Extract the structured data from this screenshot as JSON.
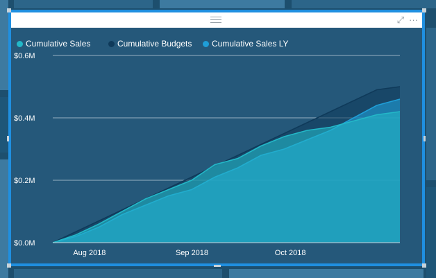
{
  "visual": {
    "legend": [
      {
        "label": "Cumulative Sales",
        "color": "#23b8c8"
      },
      {
        "label": "Cumulative Budgets",
        "color": "#0f3a5a"
      },
      {
        "label": "Cumulative Sales LY",
        "color": "#1f9ed8"
      }
    ],
    "header_icons": {
      "focus": "focus-mode-icon",
      "more": "more-options-icon",
      "more_glyph": "···",
      "focus_glyph": "⤢"
    }
  },
  "chart_data": {
    "type": "area",
    "x_ticks": [
      "Aug 2018",
      "Sep 2018",
      "Oct 2018"
    ],
    "y_ticks": [
      "$0.0M",
      "$0.2M",
      "$0.4M",
      "$0.6M"
    ],
    "ylim": [
      0,
      0.6
    ],
    "grid": true,
    "legend_position": "top-left",
    "x": [
      "2018-07-25",
      "2018-08-01",
      "2018-08-08",
      "2018-08-15",
      "2018-08-22",
      "2018-08-29",
      "2018-09-05",
      "2018-09-12",
      "2018-09-19",
      "2018-09-26",
      "2018-10-03",
      "2018-10-10",
      "2018-10-17",
      "2018-10-24",
      "2018-10-31",
      "2018-11-07"
    ],
    "series": [
      {
        "name": "Cumulative Budgets",
        "color": "#0f3a5a",
        "values": [
          0.0,
          0.035,
          0.07,
          0.105,
          0.14,
          0.175,
          0.21,
          0.245,
          0.28,
          0.315,
          0.35,
          0.385,
          0.42,
          0.455,
          0.49,
          0.5
        ]
      },
      {
        "name": "Cumulative Sales LY",
        "color": "#1f9ed8",
        "values": [
          0.0,
          0.02,
          0.05,
          0.09,
          0.12,
          0.15,
          0.17,
          0.21,
          0.24,
          0.28,
          0.3,
          0.33,
          0.36,
          0.4,
          0.44,
          0.46
        ]
      },
      {
        "name": "Cumulative Sales",
        "color": "#23b8c8",
        "values": [
          0.0,
          0.025,
          0.06,
          0.1,
          0.14,
          0.17,
          0.2,
          0.25,
          0.27,
          0.31,
          0.34,
          0.36,
          0.37,
          0.39,
          0.41,
          0.42
        ]
      }
    ]
  }
}
